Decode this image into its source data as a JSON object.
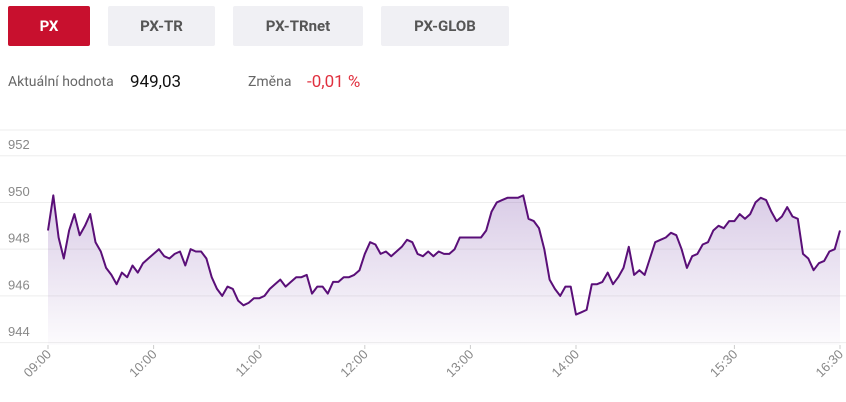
{
  "tabs": [
    "PX",
    "PX-TR",
    "PX-TRnet",
    "PX-GLOB"
  ],
  "summary": {
    "current_label": "Aktuální hodnota",
    "current_value": "949,03",
    "change_label": "Změna",
    "change_value": "-0,01 %"
  },
  "chart_data": {
    "type": "area",
    "color": "#5a0f78",
    "grid": true,
    "xlim": [
      9,
      16.5
    ],
    "xticks": [
      {
        "value": 9,
        "label": "09:00"
      },
      {
        "value": 10,
        "label": "10:00"
      },
      {
        "value": 11,
        "label": "11:00"
      },
      {
        "value": 12,
        "label": "12:00"
      },
      {
        "value": 13,
        "label": "13:00"
      },
      {
        "value": 14,
        "label": "14:00"
      },
      {
        "value": 15.5,
        "label": "15:30"
      },
      {
        "value": 16.5,
        "label": "16:30"
      }
    ],
    "ylim": [
      943.9,
      953.1
    ],
    "yticks": [
      944,
      946,
      948,
      950,
      952
    ],
    "x": [
      9,
      9.05,
      9.1,
      9.15,
      9.2,
      9.25,
      9.3,
      9.35,
      9.4,
      9.45,
      9.5,
      9.55,
      9.6,
      9.65,
      9.7,
      9.75,
      9.8,
      9.85,
      9.9,
      9.95,
      10,
      10.05,
      10.1,
      10.15,
      10.2,
      10.25,
      10.3,
      10.35,
      10.4,
      10.45,
      10.5,
      10.55,
      10.6,
      10.65,
      10.7,
      10.75,
      10.8,
      10.85,
      10.9,
      10.95,
      11,
      11.05,
      11.1,
      11.15,
      11.2,
      11.25,
      11.3,
      11.35,
      11.4,
      11.45,
      11.5,
      11.55,
      11.6,
      11.65,
      11.7,
      11.75,
      11.8,
      11.85,
      11.9,
      11.95,
      12,
      12.05,
      12.1,
      12.15,
      12.2,
      12.25,
      12.3,
      12.35,
      12.4,
      12.45,
      12.5,
      12.55,
      12.6,
      12.65,
      12.7,
      12.75,
      12.8,
      12.85,
      12.9,
      12.95,
      13,
      13.05,
      13.1,
      13.15,
      13.2,
      13.25,
      13.3,
      13.35,
      13.4,
      13.45,
      13.5,
      13.55,
      13.6,
      13.65,
      13.7,
      13.75,
      13.8,
      13.85,
      13.9,
      13.95,
      14,
      14.05,
      14.1,
      14.15,
      14.2,
      14.25,
      14.3,
      14.35,
      14.4,
      14.45,
      14.5,
      14.55,
      14.6,
      14.65,
      14.7,
      14.75,
      14.8,
      14.85,
      14.9,
      14.95,
      15,
      15.05,
      15.1,
      15.15,
      15.2,
      15.25,
      15.3,
      15.35,
      15.4,
      15.45,
      15.5,
      15.55,
      15.6,
      15.65,
      15.7,
      15.75,
      15.8,
      15.85,
      15.9,
      15.95,
      16,
      16.05,
      16.1,
      16.15,
      16.2,
      16.25,
      16.3,
      16.35,
      16.4,
      16.45,
      16.5
    ],
    "values": [
      948.8,
      950.3,
      948.5,
      947.6,
      948.8,
      949.5,
      948.6,
      949.0,
      949.5,
      948.3,
      947.9,
      947.2,
      946.9,
      946.5,
      947.0,
      946.8,
      947.3,
      947.0,
      947.4,
      947.6,
      947.8,
      948.0,
      947.7,
      947.6,
      947.8,
      947.9,
      947.3,
      948.0,
      947.9,
      947.9,
      947.6,
      946.8,
      946.3,
      946.0,
      946.4,
      946.3,
      945.8,
      945.6,
      945.7,
      945.9,
      945.9,
      946.0,
      946.3,
      946.5,
      946.7,
      946.4,
      946.6,
      946.8,
      946.8,
      946.9,
      946.1,
      946.4,
      946.4,
      946.1,
      946.6,
      946.6,
      946.8,
      946.8,
      946.9,
      947.1,
      947.8,
      948.3,
      948.2,
      947.8,
      947.9,
      947.7,
      947.9,
      948.1,
      948.4,
      948.3,
      947.8,
      947.7,
      947.9,
      947.7,
      947.9,
      947.8,
      947.8,
      948.0,
      948.5,
      948.5,
      948.5,
      948.5,
      948.5,
      948.8,
      949.6,
      950.0,
      950.1,
      950.2,
      950.2,
      950.2,
      950.3,
      949.3,
      949.2,
      948.9,
      948.0,
      946.7,
      946.3,
      946.0,
      946.4,
      946.4,
      945.2,
      945.3,
      945.4,
      946.5,
      946.5,
      946.6,
      947.0,
      946.5,
      946.8,
      947.2,
      948.1,
      946.9,
      947.1,
      946.9,
      947.6,
      948.3,
      948.4,
      948.5,
      948.7,
      948.6,
      948.0,
      947.2,
      947.7,
      947.8,
      948.2,
      948.3,
      948.8,
      949.0,
      948.9,
      949.2,
      949.2,
      949.5,
      949.3,
      949.5,
      950.0,
      950.2,
      950.1,
      949.6,
      949.2,
      949.4,
      949.8,
      949.4,
      949.3,
      947.8,
      947.6,
      947.1,
      947.4,
      947.5,
      947.9,
      948.0,
      948.8
    ]
  }
}
